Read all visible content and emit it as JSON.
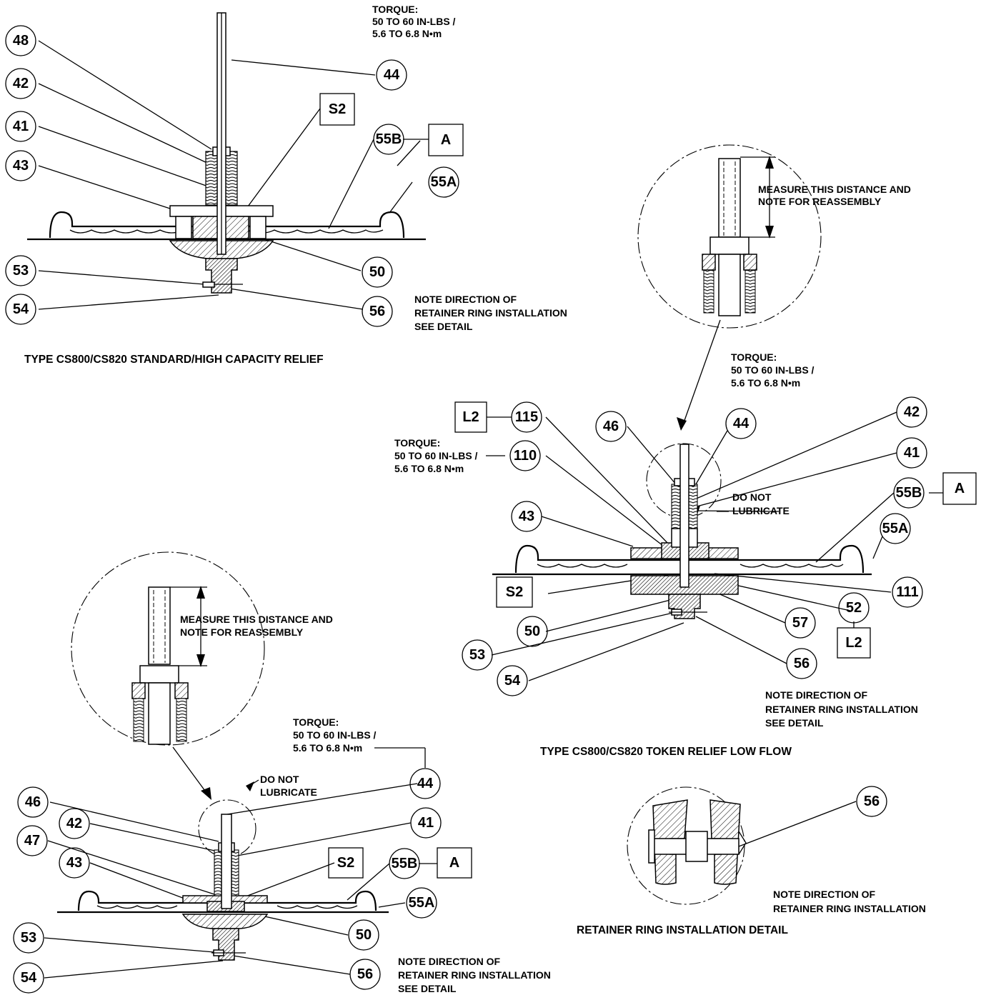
{
  "callouts": {
    "v1": {
      "c48": "48",
      "c42": "42",
      "c41": "41",
      "c43": "43",
      "c53": "53",
      "c54": "54",
      "c44": "44",
      "c55b": "55B",
      "c55a": "55A",
      "c50": "50",
      "c56": "56",
      "box_s2": "S2",
      "box_a": "A"
    },
    "v2": {
      "c46": "46",
      "c44": "44",
      "c42": "42",
      "c41": "41",
      "c115": "115",
      "c110": "110",
      "c43": "43",
      "c55b": "55B",
      "c55a": "55A",
      "c111": "111",
      "c52": "52",
      "c50": "50",
      "c57": "57",
      "c53": "53",
      "c56": "56",
      "c54": "54",
      "box_l2_top": "L2",
      "box_a": "A",
      "box_s2": "S2",
      "box_l2_bottom": "L2"
    },
    "v3": {
      "c44": "44",
      "c46": "46",
      "c41": "41",
      "c42": "42",
      "c47": "47",
      "c43": "43",
      "c55b": "55B",
      "c55a": "55A",
      "c50": "50",
      "c53": "53",
      "c54": "54",
      "c56": "56",
      "box_s2": "S2",
      "box_a": "A"
    },
    "detail": {
      "c56": "56"
    }
  },
  "notes": {
    "torque_title": "TORQUE:",
    "torque_inlbs": "50 TO 60 IN-LBS /",
    "torque_nm": "5.6 TO 6.8 N•m",
    "measure_line1": "MEASURE THIS DISTANCE AND",
    "measure_line2": "NOTE FOR REASSEMBLY",
    "do_not": "DO NOT",
    "lubricate": "LUBRICATE",
    "note_dir_line1": "NOTE DIRECTION OF",
    "note_dir_line2": "RETAINER RING INSTALLATION",
    "see_detail": "SEE DETAIL"
  },
  "captions": {
    "standard": "TYPE CS800/CS820 STANDARD/HIGH CAPACITY RELIEF",
    "token": "TYPE CS800/CS820 TOKEN RELIEF LOW FLOW",
    "detail": "RETAINER RING INSTALLATION DETAIL"
  }
}
